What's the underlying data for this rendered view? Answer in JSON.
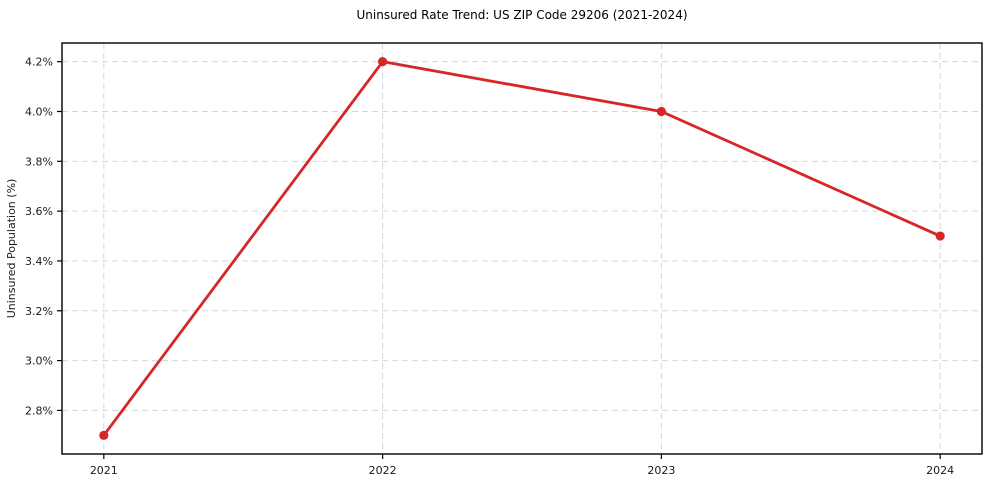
{
  "chart_data": {
    "type": "line",
    "title": "Uninsured Rate Trend: US ZIP Code 29206 (2021-2024)",
    "xlabel": "",
    "ylabel": "Uninsured Population (%)",
    "x": [
      2021,
      2022,
      2023,
      2024
    ],
    "values": [
      2.7,
      4.2,
      4.0,
      3.5
    ],
    "xtick_labels": [
      "2021",
      "2022",
      "2023",
      "2024"
    ],
    "ytick_labels": [
      "2.8%",
      "3.0%",
      "3.2%",
      "3.4%",
      "3.6%",
      "3.8%",
      "4.0%",
      "4.2%"
    ],
    "ytick_values": [
      2.8,
      3.0,
      3.2,
      3.4,
      3.6,
      3.8,
      4.0,
      4.2
    ],
    "xlim": [
      2020.85,
      2024.15
    ],
    "ylim": [
      2.625,
      4.275
    ],
    "grid": true,
    "grid_style": "dashed",
    "legend_position": "none",
    "colors": {
      "line": "#d62728",
      "marker": "#d62728",
      "grid": "#d6d6d6",
      "spine": "#000000",
      "tick_text": "#1a1a1a",
      "background": "#ffffff"
    }
  }
}
